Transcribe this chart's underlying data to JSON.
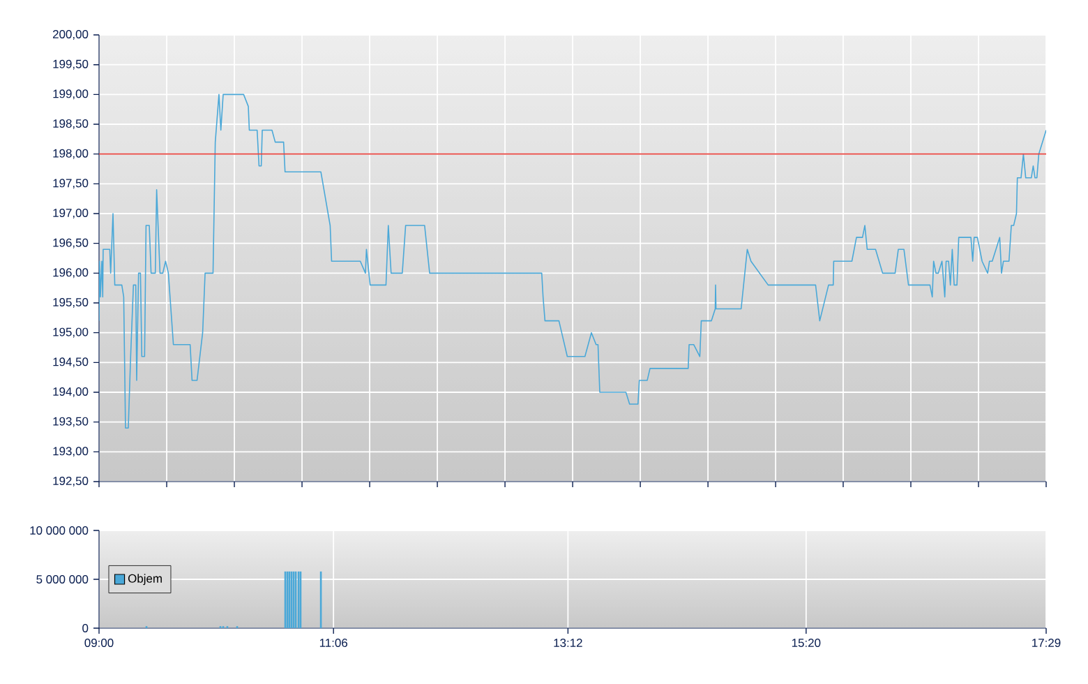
{
  "chart_data": [
    {
      "type": "line",
      "color": "#4aa8d8",
      "tick_labels": "y",
      "grid": true,
      "x": [
        9.0,
        9.004,
        9.012,
        9.025,
        9.033,
        9.037,
        9.096,
        9.104,
        9.125,
        9.141,
        9.204,
        9.221,
        9.237,
        9.262,
        9.283,
        9.308,
        9.329,
        9.337,
        9.354,
        9.371,
        9.383,
        9.408,
        9.421,
        9.45,
        9.466,
        9.504,
        9.516,
        9.546,
        9.571,
        9.596,
        9.621,
        9.666,
        9.816,
        9.833,
        9.878,
        9.928,
        9.95,
        10.021,
        10.041,
        10.074,
        10.091,
        10.112,
        10.295,
        10.337,
        10.346,
        10.416,
        10.433,
        10.453,
        10.462,
        10.549,
        10.578,
        10.653,
        10.666,
        10.987,
        11.07,
        11.083,
        11.34,
        11.386,
        11.395,
        11.428,
        11.57,
        11.591,
        11.616,
        11.716,
        11.746,
        11.916,
        11.961,
        12.965,
        12.977,
        12.994,
        13.119,
        13.194,
        13.352,
        13.41,
        13.452,
        13.469,
        13.485,
        13.719,
        13.752,
        13.827,
        13.839,
        13.91,
        13.935,
        14.277,
        14.285,
        14.326,
        14.381,
        14.394,
        14.485,
        14.519,
        14.522,
        14.526,
        14.751,
        14.806,
        14.839,
        14.993,
        15.418,
        15.455,
        15.534,
        15.576,
        15.58,
        15.743,
        15.784,
        15.838,
        15.859,
        15.88,
        15.955,
        16.018,
        16.13,
        16.159,
        16.209,
        16.25,
        16.442,
        16.463,
        16.475,
        16.496,
        16.517,
        16.55,
        16.575,
        16.587,
        16.609,
        16.625,
        16.642,
        16.659,
        16.684,
        16.7,
        16.809,
        16.825,
        16.838,
        16.867,
        16.909,
        16.959,
        16.975,
        17.0,
        17.067,
        17.083,
        17.1,
        17.15,
        17.171,
        17.192,
        17.217,
        17.225,
        17.258,
        17.279,
        17.3,
        17.35,
        17.367,
        17.383,
        17.4,
        17.417,
        17.483
      ],
      "values": [
        195.2,
        196.2,
        195.6,
        196.2,
        195.6,
        196.4,
        196.4,
        196.0,
        197.0,
        195.8,
        195.8,
        195.6,
        193.4,
        193.4,
        194.6,
        195.8,
        195.8,
        194.2,
        196.0,
        196.0,
        194.6,
        194.6,
        196.8,
        196.8,
        196.0,
        196.0,
        197.4,
        196.0,
        196.0,
        196.2,
        196.0,
        194.8,
        194.8,
        194.2,
        194.2,
        195.0,
        196.0,
        196.0,
        198.2,
        199.0,
        198.4,
        199.0,
        199.0,
        198.8,
        198.4,
        198.4,
        197.8,
        197.8,
        198.4,
        198.4,
        198.2,
        198.2,
        197.7,
        197.7,
        196.8,
        196.2,
        196.2,
        196.0,
        196.4,
        195.8,
        195.8,
        196.8,
        196.0,
        196.0,
        196.8,
        196.8,
        196.0,
        196.0,
        195.6,
        195.2,
        195.2,
        194.6,
        194.6,
        195.0,
        194.8,
        194.8,
        194.0,
        194.0,
        193.8,
        193.8,
        194.2,
        194.2,
        194.4,
        194.4,
        194.8,
        194.8,
        194.6,
        195.2,
        195.2,
        195.4,
        195.8,
        195.4,
        195.4,
        196.4,
        196.2,
        195.8,
        195.8,
        195.2,
        195.8,
        195.8,
        196.2,
        196.2,
        196.6,
        196.6,
        196.8,
        196.4,
        196.4,
        196.0,
        196.0,
        196.4,
        196.4,
        195.8,
        195.8,
        195.6,
        196.2,
        196.0,
        196.0,
        196.2,
        195.6,
        196.2,
        196.2,
        195.8,
        196.4,
        195.8,
        195.8,
        196.6,
        196.6,
        196.2,
        196.6,
        196.6,
        196.2,
        196.0,
        196.2,
        196.2,
        196.6,
        196.0,
        196.2,
        196.2,
        196.8,
        196.8,
        197.0,
        197.6,
        197.6,
        198.0,
        197.6,
        197.6,
        197.8,
        197.6,
        197.6,
        198.0,
        198.4
      ],
      "xlim": [
        9.0,
        17.483
      ],
      "xticks": [
        {
          "value": 9.0,
          "label": null
        },
        {
          "value": 9.606,
          "label": null
        },
        {
          "value": 10.212,
          "label": null
        },
        {
          "value": 10.818,
          "label": null
        },
        {
          "value": 11.424,
          "label": null
        },
        {
          "value": 12.03,
          "label": null
        },
        {
          "value": 12.636,
          "label": null
        },
        {
          "value": 13.242,
          "label": null
        },
        {
          "value": 13.848,
          "label": null
        },
        {
          "value": 14.454,
          "label": null
        },
        {
          "value": 15.06,
          "label": null
        },
        {
          "value": 15.665,
          "label": null
        },
        {
          "value": 16.271,
          "label": null
        },
        {
          "value": 16.877,
          "label": null
        },
        {
          "value": 17.483,
          "label": null
        }
      ],
      "ylim": [
        192.5,
        200
      ],
      "yticks": [
        {
          "value": 192.5,
          "label": "192,50"
        },
        {
          "value": 193,
          "label": "193,00"
        },
        {
          "value": 193.5,
          "label": "193,50"
        },
        {
          "value": 194,
          "label": "194,00"
        },
        {
          "value": 194.5,
          "label": "194,50"
        },
        {
          "value": 195,
          "label": "195,00"
        },
        {
          "value": 195.5,
          "label": "195,50"
        },
        {
          "value": 196,
          "label": "196,00"
        },
        {
          "value": 196.5,
          "label": "196,50"
        },
        {
          "value": 197,
          "label": "197,00"
        },
        {
          "value": 197.5,
          "label": "197,50"
        },
        {
          "value": 198,
          "label": "198,00"
        },
        {
          "value": 198.5,
          "label": "198,50"
        },
        {
          "value": 199,
          "label": "199,00"
        },
        {
          "value": 199.5,
          "label": "199,50"
        },
        {
          "value": 200,
          "label": "200,00"
        }
      ],
      "ref_lines": [
        {
          "axis": "y",
          "value": 198,
          "color": "#e8423c"
        }
      ]
    },
    {
      "type": "bar",
      "grid": true,
      "legend": "left",
      "series": [
        {
          "name": "Objem",
          "color": "#4aa8d8",
          "x": [
            9.425,
            10.087,
            10.112,
            10.149,
            10.237,
            10.668,
            10.687,
            10.705,
            10.724,
            10.743,
            10.762,
            10.787,
            10.805,
            10.987
          ],
          "values": [
            200000,
            200000,
            200000,
            200000,
            200000,
            5800000,
            5800000,
            5800000,
            5800000,
            5800000,
            5800000,
            5800000,
            5800000,
            5800000
          ]
        }
      ],
      "xlim": [
        9.0,
        17.483
      ],
      "xticks": [
        {
          "value": 9.0,
          "label": "09:00"
        },
        {
          "value": 11.1,
          "label": "11:06"
        },
        {
          "value": 13.2,
          "label": "13:12"
        },
        {
          "value": 15.333,
          "label": "15:20"
        },
        {
          "value": 17.483,
          "label": "17:29"
        }
      ],
      "ylim": [
        0,
        10000000
      ],
      "yticks": [
        {
          "value": 0,
          "label": "0"
        },
        {
          "value": 5000000,
          "label": "5 000 000"
        },
        {
          "value": 10000000,
          "label": "10 000 000"
        }
      ]
    }
  ]
}
